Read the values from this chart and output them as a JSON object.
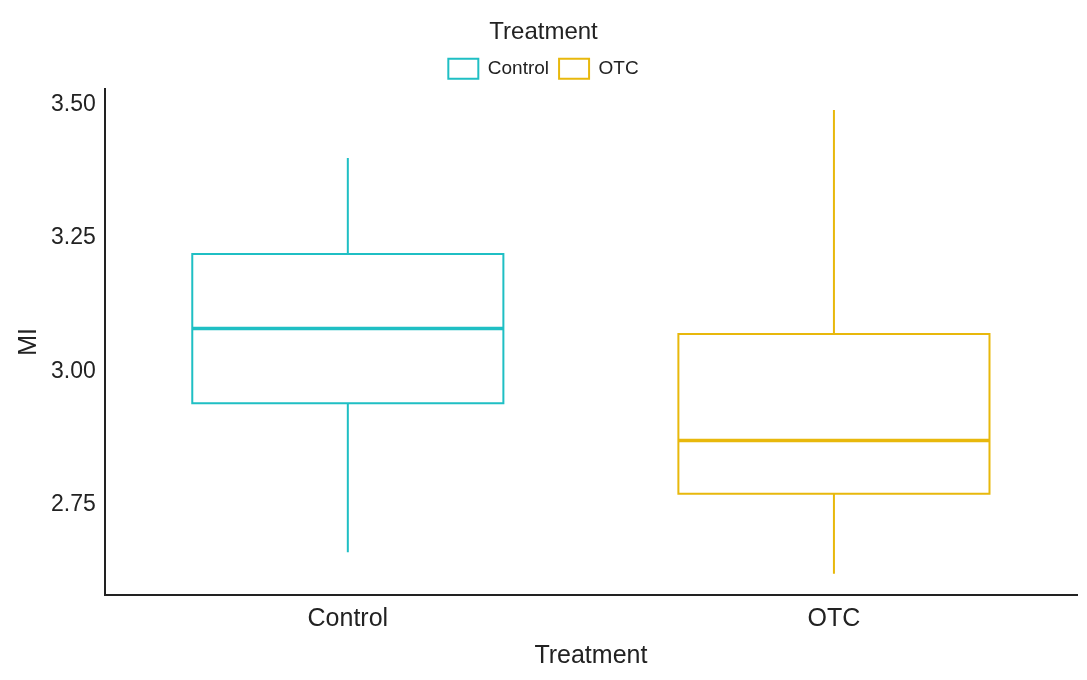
{
  "chart_data": {
    "type": "box",
    "xlabel": "Treatment",
    "ylabel": "MI",
    "legend_title": "Treatment",
    "legend": "top",
    "grid": false,
    "categories": [
      "Control",
      "OTC"
    ],
    "series": [
      {
        "name": "Control",
        "color": "#1fbfc4",
        "boxes": [
          {
            "low": 2.66,
            "q1": 2.94,
            "median": 3.08,
            "q3": 3.22,
            "high": 3.4
          },
          null
        ]
      },
      {
        "name": "OTC",
        "color": "#e8b80c",
        "boxes": [
          null,
          {
            "low": 2.62,
            "q1": 2.77,
            "median": 2.87,
            "q3": 3.07,
            "high": 3.49
          }
        ]
      }
    ],
    "ylim": [
      2.58,
      3.53
    ],
    "yticks": [
      {
        "value": 2.75,
        "label": "2.75"
      },
      {
        "value": 3,
        "label": "3.00"
      },
      {
        "value": 3.25,
        "label": "3.25"
      },
      {
        "value": 3.5,
        "label": "3.50"
      }
    ]
  }
}
